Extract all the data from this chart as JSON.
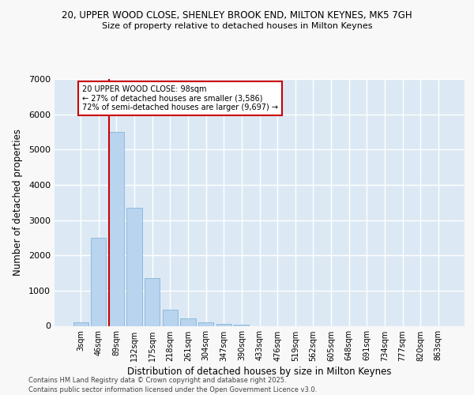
{
  "title_line1": "20, UPPER WOOD CLOSE, SHENLEY BROOK END, MILTON KEYNES, MK5 7GH",
  "title_line2": "Size of property relative to detached houses in Milton Keynes",
  "xlabel": "Distribution of detached houses by size in Milton Keynes",
  "ylabel": "Number of detached properties",
  "categories": [
    "3sqm",
    "46sqm",
    "89sqm",
    "132sqm",
    "175sqm",
    "218sqm",
    "261sqm",
    "304sqm",
    "347sqm",
    "390sqm",
    "433sqm",
    "476sqm",
    "519sqm",
    "562sqm",
    "605sqm",
    "648sqm",
    "691sqm",
    "734sqm",
    "777sqm",
    "820sqm",
    "863sqm"
  ],
  "values": [
    100,
    2500,
    5500,
    3350,
    1350,
    450,
    220,
    110,
    50,
    30,
    0,
    0,
    0,
    0,
    0,
    0,
    0,
    0,
    0,
    0,
    0
  ],
  "bar_color": "#b8d4ee",
  "bar_edgecolor": "#7aadd4",
  "vline_index": 2,
  "vline_color": "#cc0000",
  "annotation_title": "20 UPPER WOOD CLOSE: 98sqm",
  "annotation_line2": "← 27% of detached houses are smaller (3,586)",
  "annotation_line3": "72% of semi-detached houses are larger (9,697) →",
  "annotation_box_edgecolor": "#cc0000",
  "annotation_fill": "#ffffff",
  "ylim": [
    0,
    7000
  ],
  "yticks": [
    0,
    1000,
    2000,
    3000,
    4000,
    5000,
    6000,
    7000
  ],
  "plot_bg_color": "#dce9f5",
  "fig_bg_color": "#f8f8f8",
  "grid_color": "#ffffff",
  "footer_line1": "Contains HM Land Registry data © Crown copyright and database right 2025.",
  "footer_line2": "Contains public sector information licensed under the Open Government Licence v3.0."
}
